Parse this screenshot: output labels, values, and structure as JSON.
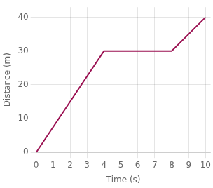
{
  "chart_data": {
    "type": "line",
    "x": [
      0,
      4,
      8,
      10
    ],
    "values": [
      0,
      30,
      30,
      40
    ],
    "color": "#9b1152",
    "xlabel": "Time (s)",
    "ylabel": "Distance (m)",
    "xlim": [
      0,
      10.3
    ],
    "ylim": [
      0,
      43
    ],
    "xticks": [
      0,
      1,
      2,
      3,
      4,
      5,
      6,
      7,
      8,
      9,
      10
    ],
    "yticks": [
      0,
      10,
      20,
      30,
      40
    ],
    "grid": true
  }
}
